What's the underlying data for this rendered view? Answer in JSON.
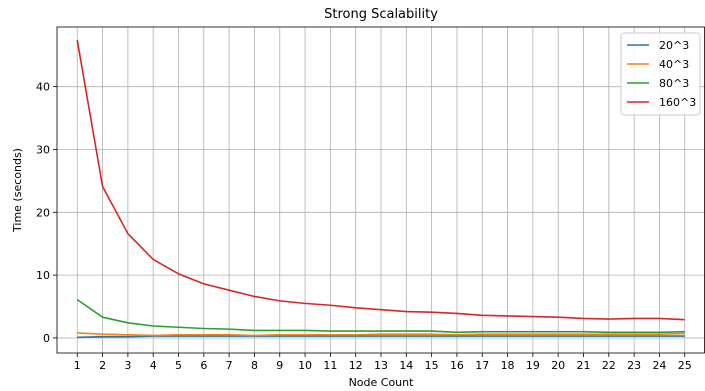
{
  "chart_data": {
    "type": "line",
    "title": "Strong Scalability",
    "xlabel": "Node Count",
    "ylabel": "Time (seconds)",
    "x": [
      1,
      2,
      3,
      4,
      5,
      6,
      7,
      8,
      9,
      10,
      11,
      12,
      13,
      14,
      15,
      16,
      17,
      18,
      19,
      20,
      21,
      22,
      23,
      24,
      25
    ],
    "xlim": [
      0.2,
      25.8
    ],
    "ylim": [
      -2.4,
      49.5
    ],
    "yticks": [
      0,
      10,
      20,
      30,
      40
    ],
    "grid": true,
    "legend_position": "top-right",
    "series": [
      {
        "name": "20^3",
        "color": "#1f77b4",
        "values": [
          0.1,
          0.2,
          0.2,
          0.3,
          0.3,
          0.3,
          0.3,
          0.3,
          0.3,
          0.3,
          0.3,
          0.3,
          0.3,
          0.3,
          0.3,
          0.3,
          0.3,
          0.3,
          0.3,
          0.3,
          0.3,
          0.3,
          0.3,
          0.3,
          0.3
        ]
      },
      {
        "name": "40^3",
        "color": "#ff7f0e",
        "values": [
          0.8,
          0.6,
          0.5,
          0.4,
          0.5,
          0.5,
          0.5,
          0.4,
          0.5,
          0.5,
          0.5,
          0.5,
          0.6,
          0.6,
          0.6,
          0.5,
          0.6,
          0.6,
          0.6,
          0.6,
          0.6,
          0.6,
          0.6,
          0.6,
          0.7
        ]
      },
      {
        "name": "80^3",
        "color": "#2ca02c",
        "values": [
          6.1,
          3.3,
          2.4,
          1.9,
          1.7,
          1.5,
          1.4,
          1.2,
          1.2,
          1.2,
          1.1,
          1.1,
          1.1,
          1.1,
          1.1,
          0.9,
          1.0,
          1.0,
          1.0,
          1.0,
          1.0,
          0.9,
          0.9,
          0.9,
          1.0
        ]
      },
      {
        "name": "160^3",
        "color": "#d62728",
        "values": [
          47.4,
          24.1,
          16.6,
          12.5,
          10.2,
          8.6,
          7.6,
          6.6,
          5.9,
          5.5,
          5.2,
          4.8,
          4.5,
          4.2,
          4.1,
          3.9,
          3.6,
          3.5,
          3.4,
          3.3,
          3.1,
          3.0,
          3.1,
          3.1,
          2.9
        ]
      }
    ]
  }
}
